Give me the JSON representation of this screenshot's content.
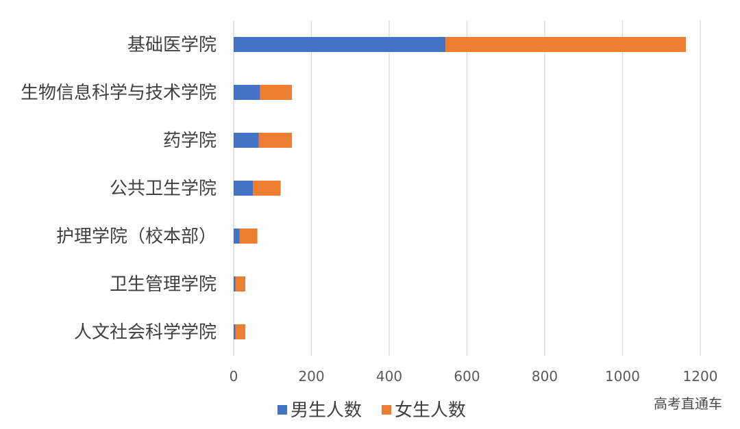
{
  "chart_data": {
    "type": "bar",
    "orientation": "horizontal",
    "stacked": true,
    "categories": [
      "基础医学院",
      "生物信息科学与技术学院",
      "药学院",
      "公共卫生学院",
      "护理学院（校本部）",
      "卫生管理学院",
      "人文社会科学学院"
    ],
    "series": [
      {
        "name": "男生人数",
        "color": "#4472C4",
        "values": [
          545,
          68,
          65,
          50,
          15,
          5,
          5
        ]
      },
      {
        "name": "女生人数",
        "color": "#ED7D31",
        "values": [
          618,
          82,
          85,
          71,
          46,
          25,
          25
        ]
      }
    ],
    "xlim": [
      0,
      1200
    ],
    "xticks": [
      "0",
      "200",
      "400",
      "600",
      "800",
      "1000",
      "1200"
    ],
    "grid": true,
    "legend_position": "bottom"
  },
  "watermark": "高考直通车"
}
